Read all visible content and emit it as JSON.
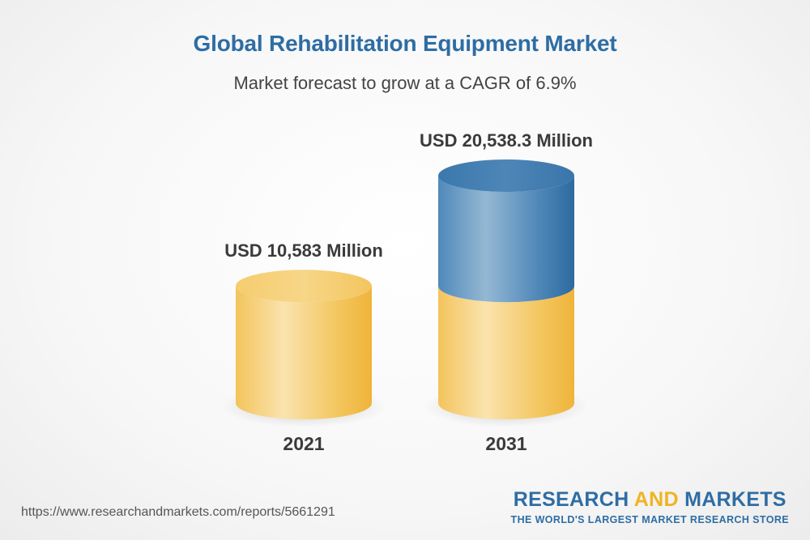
{
  "title": "Global Rehabilitation Equipment Market",
  "subtitle": "Market forecast to grow at a CAGR of 6.9%",
  "chart_data": {
    "type": "bar",
    "categories": [
      "2021",
      "2031"
    ],
    "values": [
      10583,
      20538.3
    ],
    "value_labels": [
      "USD 10,583 Million",
      "USD 20,538.3 Million"
    ],
    "unit": "USD Million",
    "style": "3d-cylinder",
    "colors": {
      "base": "#f2c053",
      "growth": "#4a86b8"
    }
  },
  "footer": {
    "url": "https://www.researchandmarkets.com/reports/5661291",
    "brand_part1": "RESEARCH ",
    "brand_part2": "AND",
    "brand_part3": " MARKETS",
    "tagline": "THE WORLD'S LARGEST MARKET RESEARCH STORE"
  }
}
